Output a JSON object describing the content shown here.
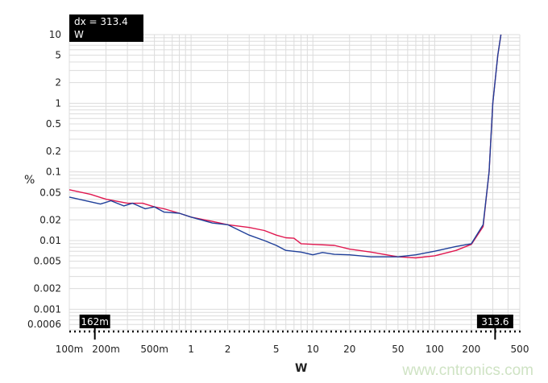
{
  "chart_data": {
    "type": "line",
    "xlabel": "W",
    "ylabel": "%",
    "x_scale": "log",
    "y_scale": "log",
    "xlim": [
      0.1,
      500
    ],
    "ylim": [
      0.0005,
      10
    ],
    "grid": true,
    "x_ticks": [
      {
        "v": 0.1,
        "label": "100m"
      },
      {
        "v": 0.2,
        "label": "200m"
      },
      {
        "v": 0.5,
        "label": "500m"
      },
      {
        "v": 1,
        "label": "1"
      },
      {
        "v": 2,
        "label": "2"
      },
      {
        "v": 5,
        "label": "5"
      },
      {
        "v": 10,
        "label": "10"
      },
      {
        "v": 20,
        "label": "20"
      },
      {
        "v": 50,
        "label": "50"
      },
      {
        "v": 100,
        "label": "100"
      },
      {
        "v": 200,
        "label": "200"
      },
      {
        "v": 500,
        "label": "500"
      }
    ],
    "y_ticks": [
      {
        "v": 10,
        "label": "10"
      },
      {
        "v": 5,
        "label": "5"
      },
      {
        "v": 2,
        "label": "2"
      },
      {
        "v": 1,
        "label": "1"
      },
      {
        "v": 0.5,
        "label": "0.5"
      },
      {
        "v": 0.2,
        "label": "0.2"
      },
      {
        "v": 0.1,
        "label": "0.1"
      },
      {
        "v": 0.05,
        "label": "0.05"
      },
      {
        "v": 0.02,
        "label": "0.02"
      },
      {
        "v": 0.01,
        "label": "0.01"
      },
      {
        "v": 0.005,
        "label": "0.005"
      },
      {
        "v": 0.002,
        "label": "0.002"
      },
      {
        "v": 0.001,
        "label": "0.001"
      },
      {
        "v": 0.0006,
        "label": "0.0006"
      }
    ],
    "cursor_readout": "dx = 313.4 W",
    "cursors": [
      {
        "v": 0.162,
        "label": "162m"
      },
      {
        "v": 313.6,
        "label": "313.6"
      }
    ],
    "series": [
      {
        "color": "#e0174f",
        "x": [
          0.1,
          0.15,
          0.2,
          0.3,
          0.4,
          0.5,
          0.6,
          0.8,
          1,
          1.5,
          2,
          3,
          4,
          5,
          6,
          7,
          8,
          10,
          15,
          20,
          30,
          50,
          70,
          100,
          150,
          200,
          250,
          280,
          300,
          330,
          350
        ],
        "y": [
          0.055,
          0.047,
          0.04,
          0.035,
          0.035,
          0.031,
          0.029,
          0.025,
          0.022,
          0.019,
          0.017,
          0.0155,
          0.014,
          0.012,
          0.011,
          0.0108,
          0.009,
          0.0088,
          0.0085,
          0.0075,
          0.0068,
          0.0058,
          0.0056,
          0.006,
          0.0072,
          0.0088,
          0.016,
          0.1,
          1,
          5,
          10
        ]
      },
      {
        "color": "#1f3f99",
        "x": [
          0.1,
          0.18,
          0.22,
          0.28,
          0.33,
          0.42,
          0.5,
          0.6,
          0.8,
          1,
          1.5,
          2,
          3,
          4,
          5,
          6,
          8,
          10,
          12,
          15,
          20,
          30,
          50,
          70,
          100,
          150,
          200,
          250,
          280,
          300,
          330,
          350
        ],
        "y": [
          0.043,
          0.034,
          0.038,
          0.032,
          0.035,
          0.029,
          0.031,
          0.026,
          0.025,
          0.022,
          0.018,
          0.017,
          0.012,
          0.01,
          0.0085,
          0.0072,
          0.0068,
          0.0062,
          0.0067,
          0.0063,
          0.0062,
          0.0058,
          0.0058,
          0.0062,
          0.007,
          0.0082,
          0.009,
          0.017,
          0.1,
          1,
          5,
          10
        ]
      }
    ]
  },
  "watermark": "www.cntronics.com"
}
